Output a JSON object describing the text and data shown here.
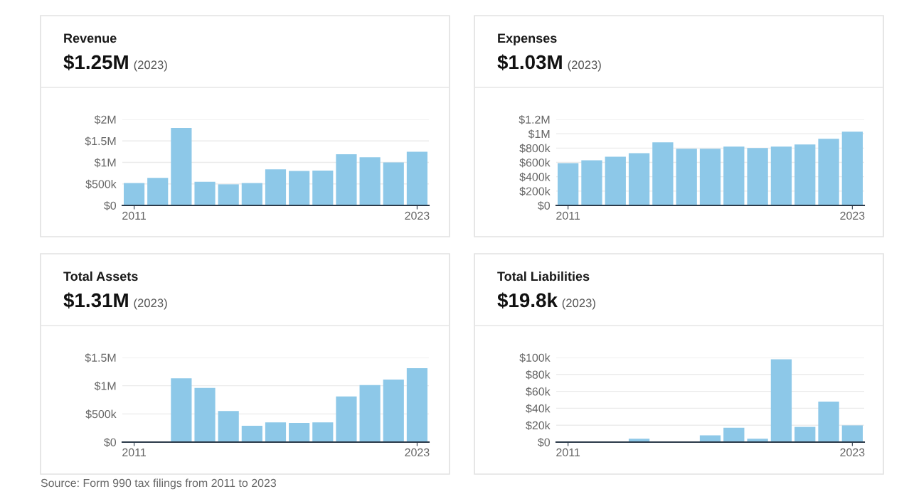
{
  "chart_data": [
    {
      "type": "bar",
      "title": "Revenue",
      "subtitle": "$1.25M (2023)",
      "categories": [
        "2011",
        null,
        null,
        null,
        null,
        null,
        null,
        null,
        null,
        null,
        null,
        null,
        "2023"
      ],
      "color": "#8dc8e8",
      "values": [
        520000,
        640000,
        1800000,
        550000,
        490000,
        520000,
        840000,
        800000,
        810000,
        1190000,
        1120000,
        1000000,
        1250000
      ],
      "ylim": [
        0,
        2000000
      ],
      "yticks": [
        {
          "value": 0,
          "label": "$0"
        },
        {
          "value": 500000,
          "label": "$500k"
        },
        {
          "value": 1000000,
          "label": "$1M"
        },
        {
          "value": 1500000,
          "label": "$1.5M"
        },
        {
          "value": 2000000,
          "label": "$2M"
        }
      ],
      "grid": "y"
    },
    {
      "type": "bar",
      "title": "Expenses",
      "subtitle": "$1.03M (2023)",
      "categories": [
        "2011",
        null,
        null,
        null,
        null,
        null,
        null,
        null,
        null,
        null,
        null,
        null,
        "2023"
      ],
      "color": "#8dc8e8",
      "values": [
        590000,
        630000,
        680000,
        730000,
        880000,
        790000,
        790000,
        820000,
        800000,
        820000,
        850000,
        930000,
        1030000
      ],
      "ylim": [
        0,
        1200000
      ],
      "yticks": [
        {
          "value": 0,
          "label": "$0"
        },
        {
          "value": 200000,
          "label": "$200k"
        },
        {
          "value": 400000,
          "label": "$400k"
        },
        {
          "value": 600000,
          "label": "$600k"
        },
        {
          "value": 800000,
          "label": "$800k"
        },
        {
          "value": 1000000,
          "label": "$1M"
        },
        {
          "value": 1200000,
          "label": "$1.2M"
        }
      ],
      "grid": "y"
    },
    {
      "type": "bar",
      "title": "Total Assets",
      "subtitle": "$1.31M (2023)",
      "categories": [
        "2011",
        null,
        null,
        null,
        null,
        null,
        null,
        null,
        null,
        null,
        null,
        null,
        "2023"
      ],
      "color": "#8dc8e8",
      "values": [
        0,
        0,
        1130000,
        960000,
        550000,
        290000,
        350000,
        340000,
        350000,
        810000,
        1010000,
        1110000,
        1310000
      ],
      "ylim": [
        0,
        1500000
      ],
      "yticks": [
        {
          "value": 0,
          "label": "$0"
        },
        {
          "value": 500000,
          "label": "$500k"
        },
        {
          "value": 1000000,
          "label": "$1M"
        },
        {
          "value": 1500000,
          "label": "$1.5M"
        }
      ],
      "grid": "y"
    },
    {
      "type": "bar",
      "title": "Total Liabilities",
      "subtitle": "$19.8k (2023)",
      "categories": [
        "2011",
        null,
        null,
        null,
        null,
        null,
        null,
        null,
        null,
        null,
        null,
        null,
        "2023"
      ],
      "color": "#8dc8e8",
      "values": [
        0,
        0,
        0,
        4000,
        0,
        0,
        8000,
        17000,
        4000,
        98000,
        18000,
        48000,
        19800
      ],
      "ylim": [
        0,
        100000
      ],
      "yticks": [
        {
          "value": 0,
          "label": "$0"
        },
        {
          "value": 20000,
          "label": "$20k"
        },
        {
          "value": 40000,
          "label": "$40k"
        },
        {
          "value": 60000,
          "label": "$60k"
        },
        {
          "value": 80000,
          "label": "$80k"
        },
        {
          "value": 100000,
          "label": "$100k"
        }
      ],
      "grid": "y",
      "annotations": [
        "Source: Form 990 tax filings from 2011 to 2023"
      ]
    }
  ]
}
